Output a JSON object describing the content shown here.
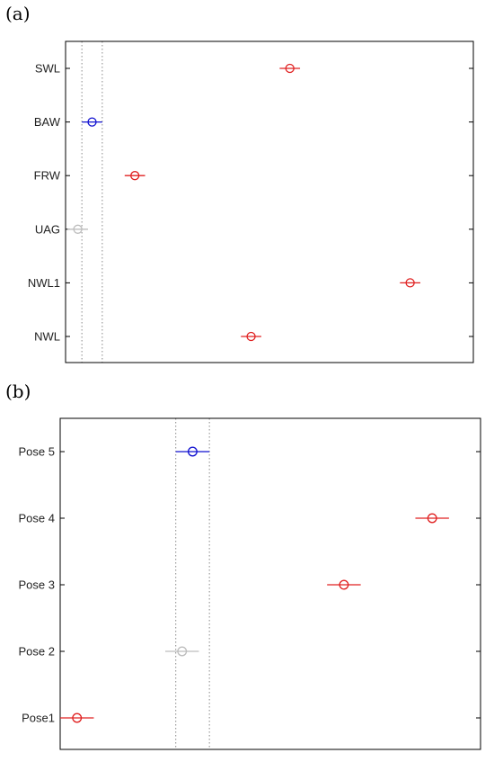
{
  "panels": [
    {
      "label": "(a)"
    },
    {
      "label": "(b)"
    }
  ],
  "colors": {
    "significant": "#e02020",
    "reference": "#1010d0",
    "nonsignificant": "#bdbdbd",
    "axis": "#000000",
    "guide": "#8a8a8a"
  },
  "chart_data": [
    {
      "type": "scatter",
      "subtype": "comparison-interval",
      "panel": "(a)",
      "title": "",
      "xlabel": "",
      "ylabel": "",
      "x_ticks_shown": false,
      "xlim": [
        0,
        100
      ],
      "grid": false,
      "categories": [
        "SWL",
        "BAW",
        "FRW",
        "UAG",
        "NWL1",
        "NWL"
      ],
      "values": [
        55.0,
        6.5,
        17.0,
        3.0,
        84.5,
        45.5
      ],
      "interval_halfwidth": 2.5,
      "status": [
        "significant",
        "reference",
        "significant",
        "nonsignificant",
        "significant",
        "significant"
      ],
      "reference_band": [
        4.0,
        9.0
      ]
    },
    {
      "type": "scatter",
      "subtype": "comparison-interval",
      "panel": "(b)",
      "title": "",
      "xlabel": "",
      "ylabel": "",
      "x_ticks_shown": false,
      "xlim": [
        0,
        100
      ],
      "grid": false,
      "categories": [
        "Pose 5",
        "Pose 4",
        "Pose 3",
        "Pose 2",
        "Pose1"
      ],
      "values": [
        31.5,
        88.5,
        67.5,
        29.0,
        4.0
      ],
      "interval_halfwidth": 4.0,
      "status": [
        "reference",
        "significant",
        "significant",
        "nonsignificant",
        "significant"
      ],
      "reference_band": [
        27.5,
        35.5
      ]
    }
  ]
}
